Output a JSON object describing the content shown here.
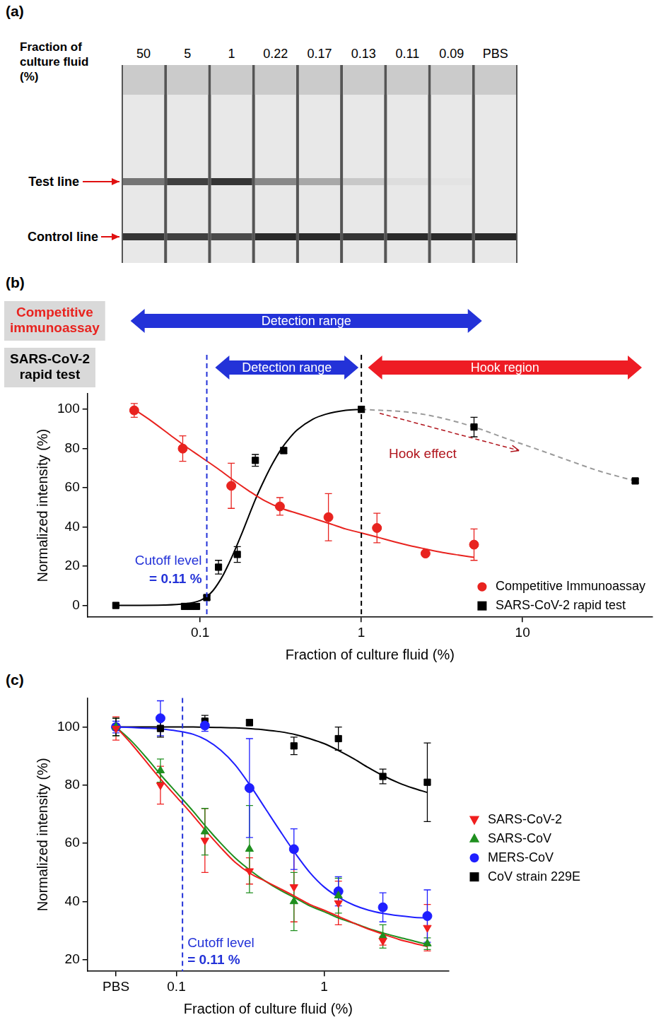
{
  "panel_a": {
    "label": "(a)",
    "header": "Fraction of culture fluid (%)",
    "lanes": [
      "50",
      "5",
      "1",
      "0.22",
      "0.17",
      "0.13",
      "0.11",
      "0.09",
      "PBS"
    ],
    "test_line": {
      "label": "Test line",
      "intensity": [
        0.55,
        0.8,
        0.85,
        0.45,
        0.3,
        0.15,
        0.05,
        0.02,
        0
      ]
    },
    "control_line": {
      "label": "Control line",
      "intensity": [
        0.85,
        0.8,
        0.75,
        0.9,
        0.9,
        0.85,
        0.9,
        0.9,
        0.9
      ]
    }
  },
  "chart_data": [
    {
      "label": "(b)",
      "type": "scatter",
      "x_label": "Fraction of culture fluid (%)",
      "y_label": "Normalized intensity (%)",
      "log": "x",
      "xlim": [
        0.02,
        64
      ],
      "xticks": [
        0.1,
        1,
        10
      ],
      "ylim": [
        -6,
        108
      ],
      "yticks": [
        0,
        20,
        40,
        60,
        80,
        100
      ],
      "grid": false,
      "legend": "lower right",
      "series": [
        {
          "name": "Competitive Immunoassay",
          "color": "#e8231f",
          "marker": "circle",
          "x": [
            0.039,
            0.078,
            0.156,
            0.3125,
            0.625,
            1.25,
            2.5,
            5
          ],
          "values": [
            99.5,
            80,
            61,
            50.5,
            45,
            39.5,
            26.5,
            31
          ],
          "errors": [
            3.5,
            6.5,
            11.5,
            4.5,
            12,
            7.5,
            1,
            8
          ],
          "fit": [
            {
              "x": [
                0.039,
                0.05,
                0.065,
                0.08,
                0.1,
                0.13,
                0.16,
                0.2,
                0.25,
                0.32,
                0.4,
                0.5,
                0.65,
                0.8,
                1,
                1.3,
                1.6,
                2,
                2.5,
                3.2,
                4,
                5
              ],
              "values": [
                100,
                94,
                87,
                81.5,
                76,
                69.5,
                64,
                58.5,
                53.5,
                49.5,
                47,
                44.5,
                41.5,
                39,
                37,
                34.5,
                32.5,
                30.5,
                28.8,
                27,
                25.7,
                24.5
              ]
            }
          ]
        },
        {
          "name": "SARS-CoV-2 rapid test",
          "color": "#000000",
          "marker": "square",
          "x": [
            0.03,
            0.08,
            0.087,
            0.095,
            0.11,
            0.13,
            0.17,
            0.22,
            0.33,
            1,
            5,
            50
          ],
          "values": [
            0,
            -0.5,
            -0.5,
            -0.5,
            4,
            19.5,
            26,
            74,
            79,
            100,
            91,
            63.5
          ],
          "errors": [
            0,
            0,
            0,
            0,
            1,
            3.5,
            4,
            3,
            1.5,
            1.5,
            5,
            1
          ],
          "fit": [
            {
              "x": [
                0.03,
                0.06,
                0.08,
                0.1,
                0.11,
                0.12,
                0.13,
                0.14,
                0.15,
                0.16,
                0.18,
                0.2,
                0.22,
                0.25,
                0.28,
                0.32,
                0.36,
                0.4,
                0.5,
                0.6,
                0.8,
                1
              ],
              "values": [
                0,
                0.2,
                0.8,
                2.5,
                4.5,
                7.5,
                11.5,
                16,
                21,
                26,
                36,
                45.5,
                54,
                64,
                72,
                80,
                85.5,
                89.5,
                95,
                97.5,
                99.5,
                100
              ]
            },
            {
              "x": [
                1,
                2,
                3,
                5,
                8,
                12,
                20,
                30,
                50
              ],
              "values": [
                100,
                98.5,
                96,
                91,
                85,
                80,
                73.5,
                68.5,
                63.5
              ],
              "color": "#9a9a9a",
              "line_style": "dashed"
            }
          ]
        }
      ],
      "row_labels": [
        {
          "text": "Competitive immunoassay",
          "color": "#e8231f",
          "ranges": [
            {
              "text": "Detection range",
              "from": 0.037,
              "to": 5.6,
              "color": "#2332d8"
            }
          ]
        },
        {
          "text": "SARS-CoV-2 rapid test",
          "color": "#000000",
          "ranges": [
            {
              "text": "Detection range",
              "from": 0.124,
              "to": 0.96,
              "color": "#2332d8"
            },
            {
              "text": "Hook region",
              "from": 1.1,
              "to": 55,
              "color": "#ee1c24"
            }
          ]
        }
      ],
      "cutoff": {
        "value": 0.11,
        "label": [
          "Cutoff level",
          "= 0.11 %"
        ],
        "color": "#2332d8",
        "line_style": "dashed"
      },
      "boundary": {
        "value": 1,
        "color": "#000000",
        "line_style": "dashed"
      },
      "hook_effect": {
        "text": "Hook effect",
        "from": [
          1.3,
          98
        ],
        "to": [
          9.5,
          79
        ],
        "x": 2.4,
        "y": 77,
        "color": "#b0141c"
      }
    },
    {
      "label": "(c)",
      "type": "scatter",
      "x_label": "Fraction of culture fluid (%)",
      "y_label": "Normalized intensity (%)",
      "log": "x",
      "xlim": [
        0.025,
        7
      ],
      "xticks": [
        {
          "value": 0.039,
          "label": "PBS"
        },
        0.1,
        1
      ],
      "ylim": [
        16,
        110
      ],
      "yticks": [
        20,
        40,
        60,
        80,
        100
      ],
      "grid": false,
      "legend": "right",
      "series": [
        {
          "name": "SARS-CoV-2",
          "color": "#f01e1e",
          "marker": "triangle-down",
          "x": [
            0.039,
            0.078,
            0.156,
            0.3125,
            0.625,
            1.25,
            2.5,
            5
          ],
          "values": [
            99.5,
            80,
            61,
            50.5,
            45,
            39.5,
            26.5,
            31
          ],
          "errors": [
            4,
            6.5,
            11,
            4.5,
            12,
            7.5,
            1.5,
            8
          ],
          "fit": [
            {
              "x": [
                0.039,
                0.05,
                0.065,
                0.08,
                0.1,
                0.13,
                0.16,
                0.2,
                0.25,
                0.32,
                0.4,
                0.5,
                0.65,
                0.8,
                1,
                1.3,
                1.6,
                2,
                2.5,
                3.2,
                4,
                5
              ],
              "values": [
                100,
                94,
                87,
                81.5,
                76,
                69.5,
                64,
                58.5,
                53.5,
                49.5,
                47,
                44.5,
                41.5,
                39,
                37,
                34.5,
                32.5,
                30.5,
                28.8,
                27,
                25.7,
                24.5
              ]
            }
          ]
        },
        {
          "name": "SARS-CoV",
          "color": "#1f8f1f",
          "marker": "triangle",
          "x": [
            0.039,
            0.078,
            0.156,
            0.3125,
            0.625,
            1.25,
            2.5,
            5
          ],
          "values": [
            100,
            85,
            64,
            58,
            40,
            42,
            28,
            25.5
          ],
          "errors": [
            3,
            4,
            8,
            15,
            10,
            6,
            4,
            2
          ],
          "fit": [
            {
              "x": [
                0.039,
                0.05,
                0.065,
                0.08,
                0.1,
                0.13,
                0.16,
                0.2,
                0.25,
                0.32,
                0.4,
                0.5,
                0.65,
                0.8,
                1,
                1.3,
                1.6,
                2,
                2.5,
                3.2,
                4,
                5
              ],
              "values": [
                100,
                95,
                88.5,
                83,
                77.5,
                71,
                65.5,
                60,
                55,
                50.5,
                47,
                44,
                41,
                38.5,
                36.5,
                34,
                32.5,
                30.7,
                29.2,
                27.7,
                26.5,
                25.2
              ]
            }
          ]
        },
        {
          "name": "MERS-CoV",
          "color": "#1f1fff",
          "marker": "circle",
          "x": [
            0.039,
            0.078,
            0.156,
            0.3125,
            0.625,
            1.25,
            2.5,
            5
          ],
          "values": [
            100,
            103,
            100.5,
            79,
            58,
            43.5,
            38,
            35
          ],
          "errors": [
            2,
            6,
            2,
            17,
            7,
            5,
            5,
            9
          ],
          "fit": [
            {
              "x": [
                0.039,
                0.05,
                0.065,
                0.08,
                0.1,
                0.13,
                0.16,
                0.2,
                0.25,
                0.32,
                0.4,
                0.5,
                0.65,
                0.8,
                1,
                1.3,
                1.6,
                2,
                2.5,
                3.2,
                4,
                5
              ],
              "values": [
                100,
                99.8,
                99.6,
                99.3,
                98.7,
                97.5,
                95.5,
                92,
                87,
                79.5,
                72,
                64.5,
                56,
                50,
                45,
                41,
                38.7,
                37,
                35.9,
                35.1,
                34.6,
                34.3
              ]
            }
          ]
        },
        {
          "name": "CoV strain 229E",
          "color": "#000000",
          "marker": "square",
          "x": [
            0.039,
            0.078,
            0.156,
            0.3125,
            0.625,
            1.25,
            2.5,
            5
          ],
          "values": [
            100,
            99.5,
            102,
            101.5,
            93.5,
            96,
            83,
            81
          ],
          "errors": [
            3,
            3,
            2,
            1,
            3,
            4,
            2.5,
            13.5
          ],
          "fit": [
            {
              "x": [
                0.039,
                0.05,
                0.065,
                0.08,
                0.1,
                0.13,
                0.16,
                0.2,
                0.25,
                0.32,
                0.4,
                0.5,
                0.65,
                0.8,
                1,
                1.3,
                1.6,
                2,
                2.5,
                3.2,
                4,
                5
              ],
              "values": [
                100,
                100,
                100,
                100,
                100,
                100,
                99.9,
                99.8,
                99.7,
                99.4,
                99,
                98.4,
                97.3,
                96,
                94.3,
                91.5,
                89,
                86,
                83.3,
                80.8,
                79,
                77.5
              ]
            }
          ]
        }
      ],
      "cutoff": {
        "value": 0.11,
        "label": [
          "Cutoff level",
          "= 0.11 %"
        ],
        "color": "#2332d8",
        "line_style": "dashed"
      }
    }
  ]
}
